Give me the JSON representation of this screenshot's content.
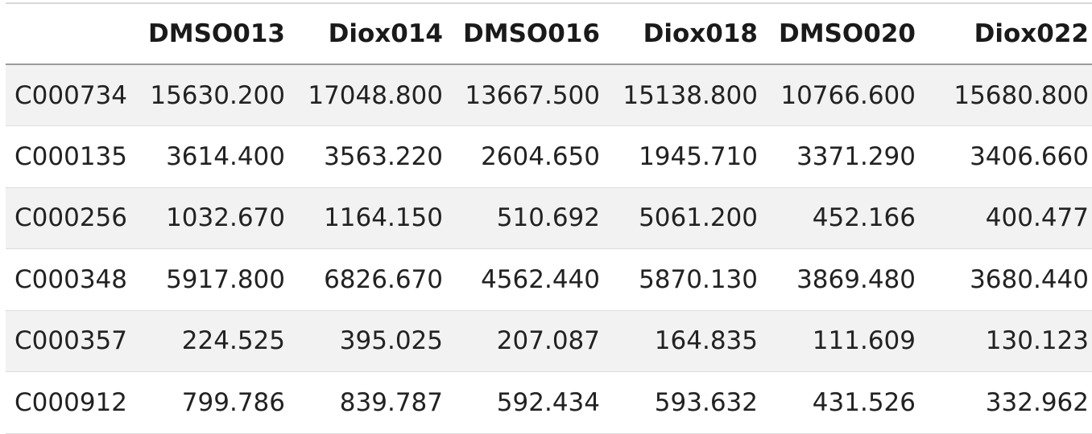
{
  "table": {
    "columns": [
      "",
      "DMSO013",
      "Diox014",
      "DMSO016",
      "Diox018",
      "DMSO020",
      "Diox022"
    ],
    "rows": [
      {
        "id": "C000734",
        "values": [
          "15630.200",
          "17048.800",
          "13667.500",
          "15138.800",
          "10766.600",
          "15680.800"
        ]
      },
      {
        "id": "C000135",
        "values": [
          "3614.400",
          "3563.220",
          "2604.650",
          "1945.710",
          "3371.290",
          "3406.660"
        ]
      },
      {
        "id": "C000256",
        "values": [
          "1032.670",
          "1164.150",
          "510.692",
          "5061.200",
          "452.166",
          "400.477"
        ]
      },
      {
        "id": "C000348",
        "values": [
          "5917.800",
          "6826.670",
          "4562.440",
          "5870.130",
          "3869.480",
          "3680.440"
        ]
      },
      {
        "id": "C000357",
        "values": [
          "224.525",
          "395.025",
          "207.087",
          "164.835",
          "111.609",
          "130.123"
        ]
      },
      {
        "id": "C000912",
        "values": [
          "799.786",
          "839.787",
          "592.434",
          "593.632",
          "431.526",
          "332.962"
        ]
      }
    ]
  },
  "colors": {
    "stripe": "#f2f2f2",
    "text": "#222222",
    "header_rule": "#9a9a9a"
  }
}
